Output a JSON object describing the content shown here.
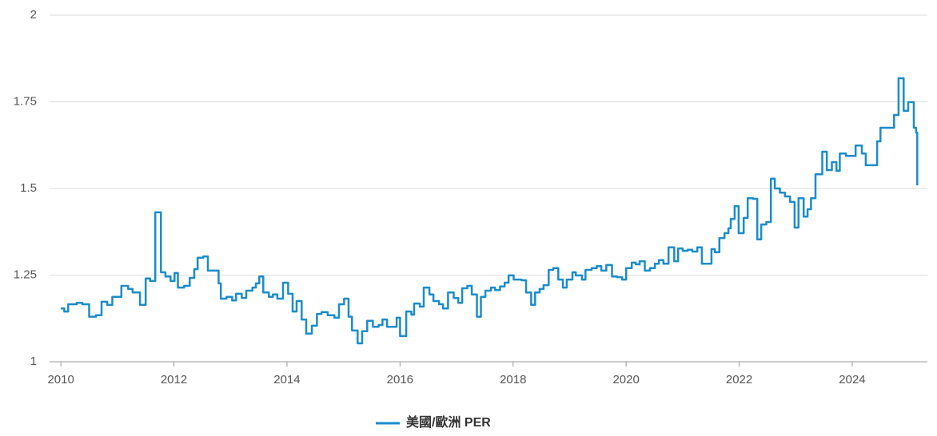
{
  "chart_data": {
    "type": "line",
    "xlim": [
      2009.8,
      2025.33
    ],
    "ylim": [
      1,
      2
    ],
    "xticks": [
      2010,
      2012,
      2014,
      2016,
      2018,
      2020,
      2022,
      2024
    ],
    "yticks": [
      1,
      1.25,
      1.5,
      1.75,
      2
    ],
    "grid": true,
    "legend": "bottom",
    "series": [
      {
        "name": "美國/歐洲 PER",
        "color": "#1a8ccc",
        "x": [
          2010.0,
          2010.06,
          2010.13,
          2010.28,
          2010.38,
          2010.5,
          2010.62,
          2010.72,
          2010.82,
          2010.91,
          2011.07,
          2011.19,
          2011.27,
          2011.4,
          2011.5,
          2011.58,
          2011.67,
          2011.77,
          2011.85,
          2011.94,
          2012.01,
          2012.07,
          2012.18,
          2012.28,
          2012.36,
          2012.42,
          2012.52,
          2012.6,
          2012.69,
          2012.79,
          2012.83,
          2012.93,
          2013.03,
          2013.1,
          2013.2,
          2013.28,
          2013.39,
          2013.45,
          2013.51,
          2013.58,
          2013.68,
          2013.75,
          2013.83,
          2013.93,
          2014.02,
          2014.1,
          2014.17,
          2014.26,
          2014.34,
          2014.44,
          2014.53,
          2014.61,
          2014.72,
          2014.84,
          2014.92,
          2015.01,
          2015.09,
          2015.15,
          2015.25,
          2015.33,
          2015.42,
          2015.52,
          2015.62,
          2015.69,
          2015.77,
          2015.94,
          2016.0,
          2016.11,
          2016.2,
          2016.25,
          2016.35,
          2016.42,
          2016.52,
          2016.59,
          2016.69,
          2016.76,
          2016.85,
          2016.95,
          2017.03,
          2017.1,
          2017.19,
          2017.27,
          2017.36,
          2017.43,
          2017.51,
          2017.61,
          2017.68,
          2017.77,
          2017.85,
          2017.92,
          2018.01,
          2018.15,
          2018.23,
          2018.32,
          2018.39,
          2018.47,
          2018.54,
          2018.63,
          2018.71,
          2018.8,
          2018.88,
          2018.95,
          2019.05,
          2019.11,
          2019.22,
          2019.28,
          2019.39,
          2019.48,
          2019.56,
          2019.65,
          2019.75,
          2019.84,
          2019.93,
          2020.0,
          2020.1,
          2020.17,
          2020.24,
          2020.33,
          2020.42,
          2020.51,
          2020.58,
          2020.66,
          2020.75,
          2020.85,
          2020.92,
          2021.0,
          2021.09,
          2021.17,
          2021.26,
          2021.34,
          2021.51,
          2021.57,
          2021.65,
          2021.74,
          2021.81,
          2021.85,
          2021.92,
          2021.99,
          2022.08,
          2022.15,
          2022.25,
          2022.32,
          2022.39,
          2022.48,
          2022.56,
          2022.63,
          2022.72,
          2022.81,
          2022.9,
          2022.98,
          2023.05,
          2023.14,
          2023.21,
          2023.27,
          2023.35,
          2023.47,
          2023.55,
          2023.64,
          2023.72,
          2023.78,
          2023.89,
          2024.0,
          2024.06,
          2024.17,
          2024.24,
          2024.34,
          2024.44,
          2024.5,
          2024.63,
          2024.74,
          2024.82,
          2024.91,
          2024.99,
          2025.09,
          2025.13,
          2025.15
        ],
        "values": [
          1.154,
          1.145,
          1.166,
          1.17,
          1.166,
          1.13,
          1.134,
          1.173,
          1.164,
          1.187,
          1.219,
          1.21,
          1.2,
          1.164,
          1.24,
          1.233,
          1.431,
          1.258,
          1.246,
          1.233,
          1.256,
          1.214,
          1.219,
          1.242,
          1.267,
          1.3,
          1.304,
          1.263,
          1.263,
          1.226,
          1.182,
          1.187,
          1.177,
          1.196,
          1.184,
          1.205,
          1.214,
          1.226,
          1.246,
          1.2,
          1.187,
          1.194,
          1.182,
          1.228,
          1.196,
          1.145,
          1.175,
          1.122,
          1.081,
          1.104,
          1.138,
          1.143,
          1.134,
          1.127,
          1.166,
          1.182,
          1.13,
          1.09,
          1.053,
          1.088,
          1.118,
          1.101,
          1.106,
          1.122,
          1.101,
          1.127,
          1.074,
          1.145,
          1.136,
          1.168,
          1.159,
          1.214,
          1.194,
          1.175,
          1.166,
          1.154,
          1.2,
          1.184,
          1.17,
          1.212,
          1.219,
          1.194,
          1.13,
          1.187,
          1.205,
          1.214,
          1.207,
          1.217,
          1.228,
          1.249,
          1.237,
          1.235,
          1.2,
          1.164,
          1.2,
          1.21,
          1.221,
          1.265,
          1.27,
          1.237,
          1.214,
          1.237,
          1.258,
          1.249,
          1.237,
          1.265,
          1.27,
          1.276,
          1.263,
          1.279,
          1.246,
          1.244,
          1.237,
          1.27,
          1.286,
          1.281,
          1.29,
          1.263,
          1.27,
          1.283,
          1.293,
          1.283,
          1.33,
          1.29,
          1.327,
          1.32,
          1.323,
          1.318,
          1.33,
          1.283,
          1.325,
          1.316,
          1.357,
          1.371,
          1.385,
          1.412,
          1.449,
          1.371,
          1.415,
          1.472,
          1.47,
          1.353,
          1.396,
          1.403,
          1.528,
          1.5,
          1.488,
          1.477,
          1.461,
          1.387,
          1.472,
          1.419,
          1.44,
          1.472,
          1.541,
          1.606,
          1.553,
          1.576,
          1.551,
          1.601,
          1.594,
          1.594,
          1.624,
          1.601,
          1.567,
          1.567,
          1.636,
          1.675,
          1.675,
          1.712,
          1.818,
          1.724,
          1.749,
          1.675,
          1.661,
          1.509
        ]
      }
    ]
  }
}
